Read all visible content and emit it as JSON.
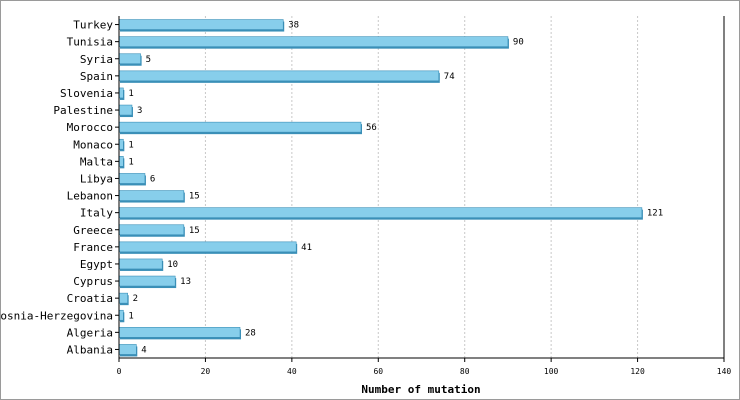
{
  "chart_data": {
    "type": "bar",
    "orientation": "horizontal",
    "title": "",
    "xlabel": "Number of mutation",
    "ylabel": "",
    "xlim": [
      0,
      140
    ],
    "xticks": [
      0,
      20,
      40,
      60,
      80,
      100,
      120,
      140
    ],
    "grid": "vertical dashed",
    "bar_color": "#87ceeb",
    "bar_edge_color": "#3a8fb7",
    "categories": [
      "Turkey",
      "Tunisia",
      "Syria",
      "Spain",
      "Slovenia",
      "Palestine",
      "Morocco",
      "Monaco",
      "Malta",
      "Libya",
      "Lebanon",
      "Italy",
      "Greece",
      "France",
      "Egypt",
      "Cyprus",
      "Croatia",
      "Bosnia-Herzegovina",
      "Algeria",
      "Albania"
    ],
    "values": [
      38,
      90,
      5,
      74,
      1,
      3,
      56,
      1,
      1,
      6,
      15,
      121,
      15,
      41,
      10,
      13,
      2,
      1,
      28,
      4
    ]
  }
}
